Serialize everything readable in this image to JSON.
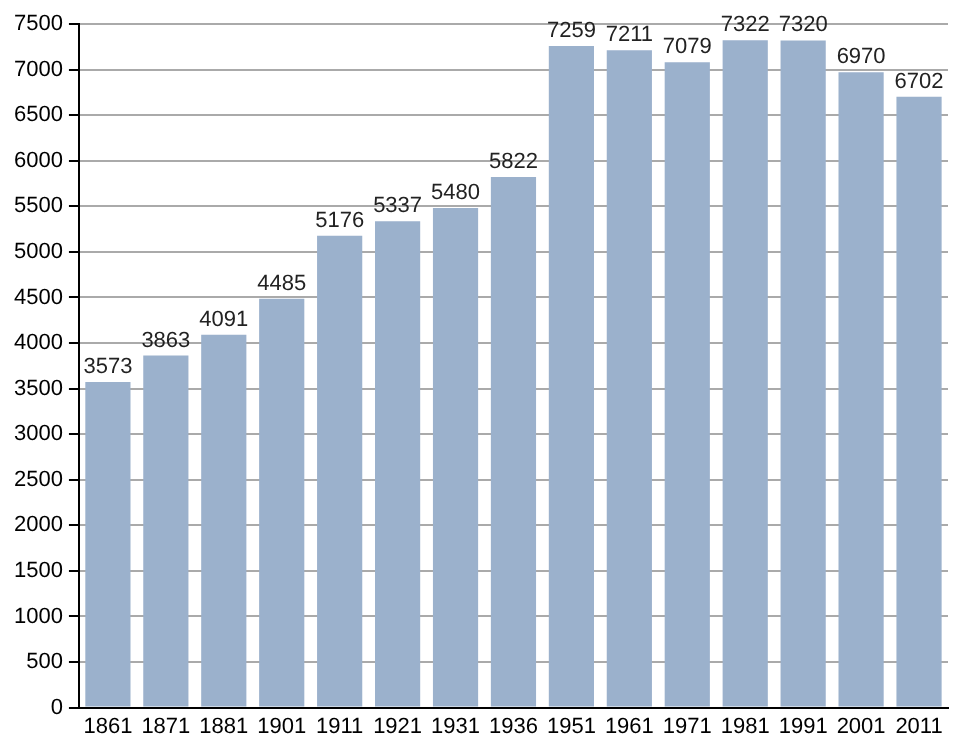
{
  "chart_data": {
    "type": "bar",
    "categories": [
      "1861",
      "1871",
      "1881",
      "1901",
      "1911",
      "1921",
      "1931",
      "1936",
      "1951",
      "1961",
      "1971",
      "1981",
      "1991",
      "2001",
      "2011"
    ],
    "values": [
      3573,
      3863,
      4091,
      4485,
      5176,
      5337,
      5480,
      5822,
      7259,
      7211,
      7079,
      7322,
      7320,
      6970,
      6702
    ],
    "color": "#9bb1cc",
    "ylim": [
      0,
      7500
    ],
    "yticks": [
      0,
      500,
      1000,
      1500,
      2000,
      2500,
      3000,
      3500,
      4000,
      4500,
      5000,
      5500,
      6000,
      6500,
      7000,
      7500
    ],
    "grid": "y",
    "data_labels": true
  }
}
